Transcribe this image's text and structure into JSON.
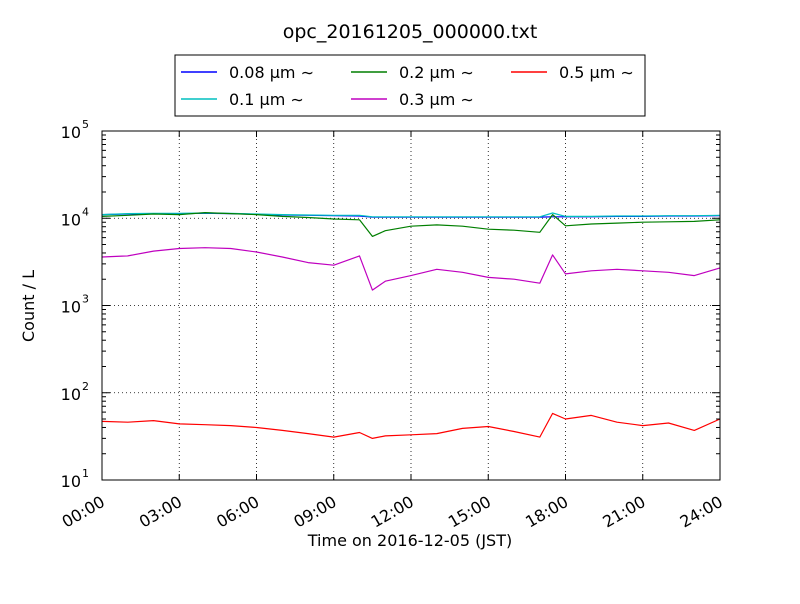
{
  "chart_data": {
    "type": "line",
    "title": "opc_20161205_000000.txt",
    "xlabel": "Time on 2016-12-05 (JST)",
    "ylabel": "Count / L",
    "y_scale": "log",
    "ylim": [
      10,
      100000
    ],
    "xlim": [
      "00:00",
      "24:00"
    ],
    "x_ticks": [
      "00:00",
      "03:00",
      "06:00",
      "09:00",
      "12:00",
      "15:00",
      "18:00",
      "21:00",
      "24:00"
    ],
    "y_ticks": [
      {
        "base": "10",
        "exp": "1",
        "value": 10
      },
      {
        "base": "10",
        "exp": "2",
        "value": 100
      },
      {
        "base": "10",
        "exp": "3",
        "value": 1000
      },
      {
        "base": "10",
        "exp": "4",
        "value": 10000
      },
      {
        "base": "10",
        "exp": "5",
        "value": 100000
      }
    ],
    "grid": true,
    "legend_position": "top-center",
    "x": [
      "00:00",
      "01:00",
      "02:00",
      "03:00",
      "04:00",
      "05:00",
      "06:00",
      "07:00",
      "08:00",
      "09:00",
      "10:00",
      "10:30",
      "11:00",
      "12:00",
      "13:00",
      "14:00",
      "15:00",
      "16:00",
      "17:00",
      "17:30",
      "18:00",
      "19:00",
      "20:00",
      "21:00",
      "22:00",
      "23:00",
      "24:00"
    ],
    "series": [
      {
        "name": "0.08 μm ∼",
        "color": "#0000ff",
        "values": [
          11000,
          11200,
          11300,
          11300,
          11400,
          11300,
          11100,
          10900,
          10800,
          10700,
          10600,
          10300,
          10300,
          10300,
          10300,
          10300,
          10300,
          10300,
          10300,
          10400,
          10400,
          10400,
          10500,
          10500,
          10600,
          10600,
          10700
        ]
      },
      {
        "name": "0.1 μm ∼",
        "color": "#00bfbf",
        "values": [
          11000,
          11300,
          11400,
          11400,
          11500,
          11400,
          11200,
          11000,
          10900,
          10800,
          10800,
          10400,
          10400,
          10400,
          10400,
          10400,
          10400,
          10400,
          10400,
          11500,
          10500,
          10500,
          10600,
          10600,
          10700,
          10700,
          10800
        ]
      },
      {
        "name": "0.2 μm ∼",
        "color": "#007f00",
        "values": [
          10500,
          10800,
          11200,
          11000,
          11600,
          11300,
          11000,
          10500,
          10200,
          9800,
          9600,
          6200,
          7200,
          8100,
          8400,
          8100,
          7500,
          7300,
          6900,
          11000,
          8200,
          8600,
          8800,
          9000,
          9100,
          9200,
          9600
        ]
      },
      {
        "name": "0.3 μm ∼",
        "color": "#bf00bf",
        "values": [
          3600,
          3700,
          4200,
          4500,
          4600,
          4500,
          4100,
          3600,
          3100,
          2900,
          3700,
          1500,
          1900,
          2200,
          2600,
          2400,
          2100,
          2000,
          1800,
          3800,
          2300,
          2500,
          2600,
          2500,
          2400,
          2200,
          2700
        ]
      },
      {
        "name": "0.5 μm ∼",
        "color": "#ff0000",
        "values": [
          47,
          46,
          48,
          44,
          43,
          42,
          40,
          37,
          34,
          31,
          35,
          30,
          32,
          33,
          34,
          39,
          41,
          36,
          31,
          58,
          50,
          55,
          46,
          42,
          45,
          37,
          50
        ]
      }
    ]
  }
}
